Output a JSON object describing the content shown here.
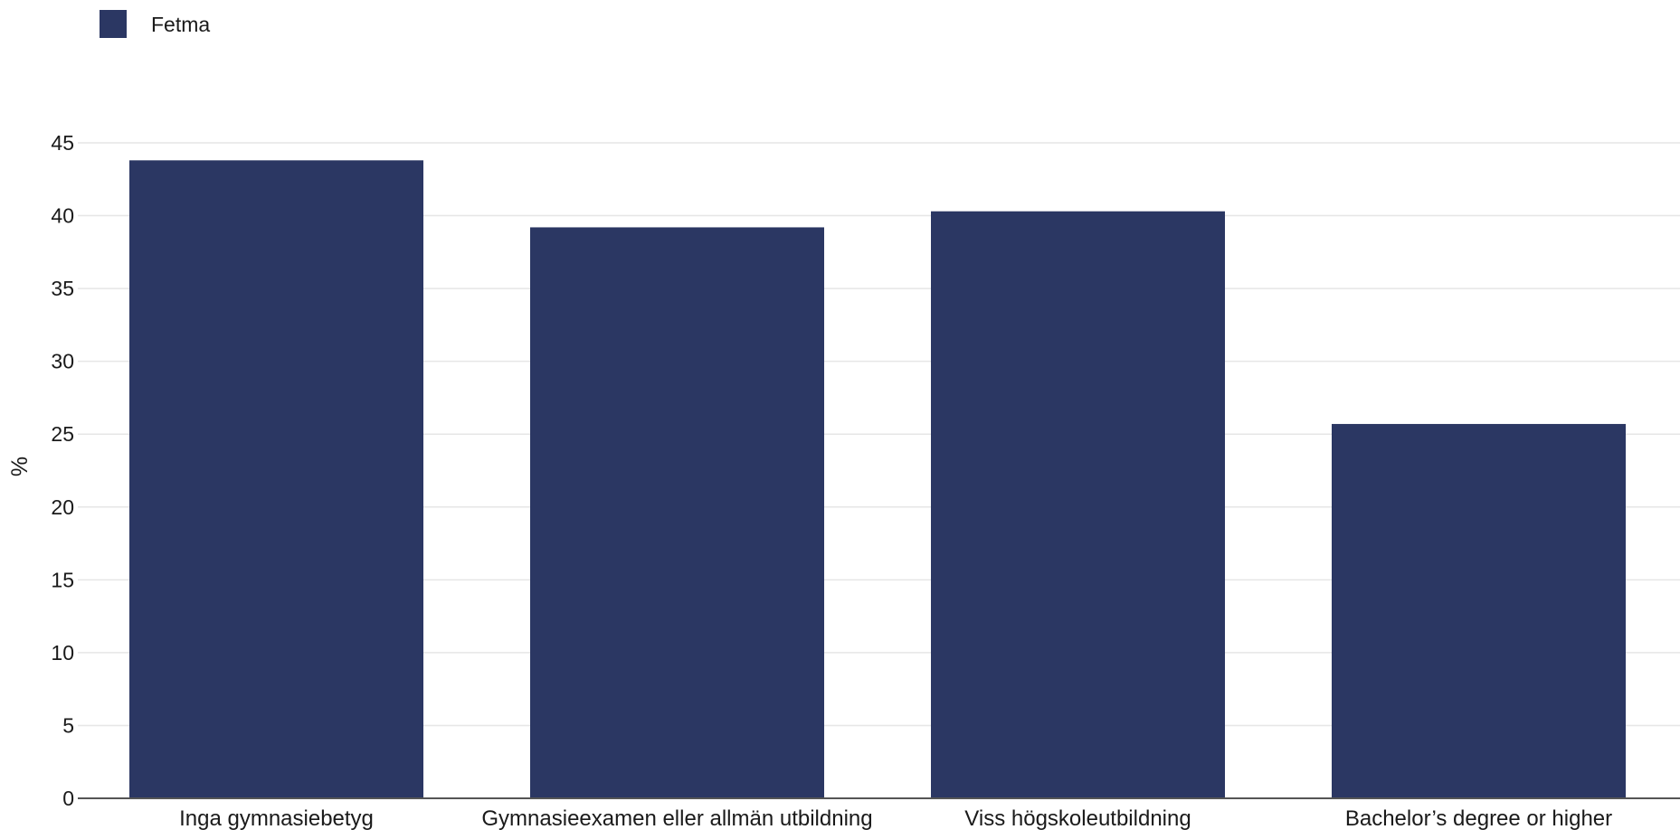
{
  "chart_data": {
    "type": "bar",
    "title": "",
    "xlabel": "",
    "ylabel": "%",
    "ylim": [
      0,
      45
    ],
    "yticks": [
      0,
      5,
      10,
      15,
      20,
      25,
      30,
      35,
      40,
      45
    ],
    "grid": true,
    "legend": "top-left",
    "categories": [
      "Inga gymnasiebetyg",
      "Gymnasieexamen eller allmän utbildning",
      "Viss högskoleutbildning",
      "Bachelor’s degree or higher"
    ],
    "series": [
      {
        "name": "Fetma",
        "color": "#2b3763",
        "values": [
          43.8,
          39.2,
          40.3,
          25.7
        ]
      }
    ]
  }
}
